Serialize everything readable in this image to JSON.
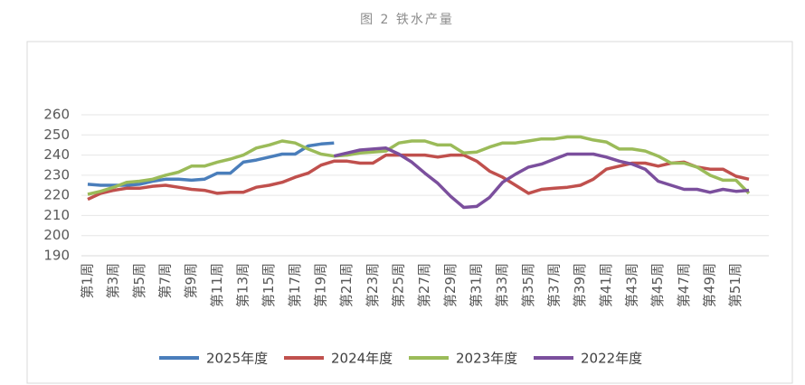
{
  "chart_data": {
    "type": "line",
    "title": "图 2 铁水产量",
    "categories": [
      "第1周",
      null,
      "第3周",
      null,
      "第5周",
      null,
      "第7周",
      null,
      "第9周",
      null,
      "第11周",
      null,
      "第13周",
      null,
      "第15周",
      null,
      "第17周",
      null,
      "第19周",
      null,
      "第21周",
      null,
      "第23周",
      null,
      "第25周",
      null,
      "第27周",
      null,
      "第29周",
      null,
      "第31周",
      null,
      "第33周",
      null,
      "第35周",
      null,
      "第37周",
      null,
      "第39周",
      null,
      "第41周",
      null,
      "第43周",
      null,
      "第45周",
      null,
      "第47周",
      null,
      "第49周",
      null,
      "第51周",
      null
    ],
    "series": [
      {
        "name": "2025年度",
        "color": "#4a7ebb",
        "values": [
          225.5,
          225,
          225,
          225,
          225.5,
          227,
          228,
          228,
          227.5,
          228,
          231,
          231,
          236.5,
          237.5,
          239,
          240.5,
          240.5,
          244.5,
          245.5,
          246,
          null,
          null,
          null,
          null,
          null,
          null,
          null,
          null,
          null,
          null,
          null,
          null,
          null,
          null,
          null,
          null,
          null,
          null,
          null,
          null,
          null,
          null,
          null,
          null,
          null,
          null,
          null,
          null,
          null,
          null,
          null,
          null
        ]
      },
      {
        "name": "2024年度",
        "color": "#c0504d",
        "values": [
          218,
          221,
          222.5,
          223.5,
          223.5,
          224.5,
          225,
          224,
          223,
          222.5,
          221,
          221.5,
          221.5,
          224,
          225,
          226.5,
          229,
          231,
          235,
          237,
          237,
          236,
          236,
          240,
          240,
          240,
          240,
          239,
          240,
          240,
          237,
          232,
          229,
          225,
          221,
          223,
          223.5,
          224,
          225,
          228,
          233,
          234.5,
          236,
          236,
          234.5,
          236,
          236.5,
          234,
          233,
          233,
          229.5,
          228
        ]
      },
      {
        "name": "2023年度",
        "color": "#9bbb59",
        "values": [
          220.5,
          222,
          224,
          226.5,
          227,
          228,
          230,
          231.5,
          234.5,
          234.5,
          236.5,
          238,
          240,
          243.5,
          245,
          247,
          246,
          243,
          240.5,
          239.5,
          240,
          241,
          241.5,
          242,
          246,
          247,
          247,
          245,
          245,
          241,
          241.5,
          244,
          246,
          246,
          247,
          248,
          248,
          249,
          249,
          247.5,
          246.5,
          243,
          243,
          242,
          239.5,
          236,
          236,
          234,
          230,
          227.5,
          227.5,
          221
        ]
      },
      {
        "name": "2022年度",
        "color": "#7b4f9d",
        "values": [
          null,
          null,
          null,
          null,
          null,
          null,
          null,
          null,
          null,
          null,
          null,
          null,
          null,
          null,
          null,
          null,
          null,
          null,
          null,
          239.5,
          241,
          242.5,
          243,
          243.5,
          240.5,
          236.5,
          231,
          226,
          219.5,
          214,
          214.5,
          219,
          226.5,
          230.5,
          234,
          235.5,
          238,
          240.5,
          240.5,
          240.5,
          239,
          237,
          235.5,
          233,
          227,
          225,
          223,
          223,
          221.5,
          223,
          222,
          222.5
        ]
      }
    ],
    "ylim": [
      190,
      260
    ],
    "yticks": [
      190,
      200,
      210,
      220,
      230,
      240,
      250,
      260
    ],
    "grid": true
  }
}
